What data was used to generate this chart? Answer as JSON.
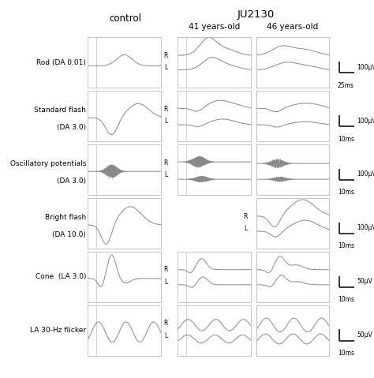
{
  "title_main": "JU2130",
  "title_control": "control",
  "subtitle_41": "41 years-old",
  "subtitle_46": "46 years-old",
  "row_labels": [
    "Rod (DA 0.01)",
    "Standard flash\n(DA 3.0)",
    "Oscillatory potentials\n(DA 3.0)",
    "Bright flash\n(DA 10.0)",
    "Cone  (LA 3.0)",
    "LA 30-Hz flicker"
  ],
  "scale_labels": [
    [
      "100μV",
      "25ms"
    ],
    [
      "100μV",
      "10ms"
    ],
    [
      "100μV",
      "10ms"
    ],
    [
      "100μV",
      "10ms"
    ],
    [
      "50μV",
      "10ms"
    ],
    [
      "50μV",
      "10ms"
    ]
  ],
  "line_color": "#888888",
  "box_edge_color": "#bbbbbb",
  "stim_line_color": "#cccccc"
}
